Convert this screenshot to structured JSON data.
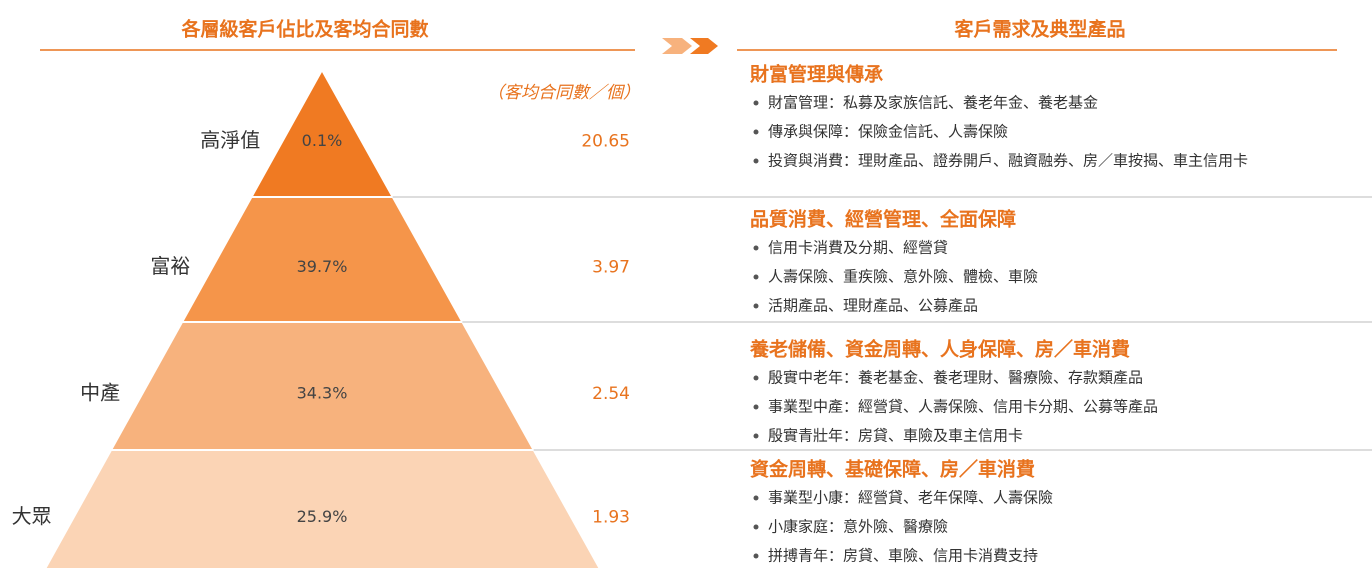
{
  "left": {
    "title": "各層級客戶佔比及客均合同數",
    "unit_note": "（客均合同數／個）",
    "tiers": [
      {
        "name": "高淨值",
        "share": "0.1%",
        "contracts": "20.65"
      },
      {
        "name": "富裕",
        "share": "39.7%",
        "contracts": "3.97"
      },
      {
        "name": "中產",
        "share": "34.3%",
        "contracts": "2.54"
      },
      {
        "name": "大眾",
        "share": "25.9%",
        "contracts": "1.93"
      }
    ]
  },
  "right": {
    "title": "客戶需求及典型產品",
    "sections": [
      {
        "heading": "財富管理與傳承",
        "items": [
          "財富管理：私募及家族信託、養老年金、養老基金",
          "傳承與保障：保險金信託、人壽保險",
          "投資與消費：理財產品、證券開戶、融資融券、房／車按揭、車主信用卡"
        ]
      },
      {
        "heading": "品質消費、經營管理、全面保障",
        "items": [
          "信用卡消費及分期、經營貸",
          "人壽保險、重疾險、意外險、體檢、車險",
          "活期產品、理財產品、公募產品"
        ]
      },
      {
        "heading": "養老儲備、資金周轉、人身保障、房／車消費",
        "items": [
          "殷實中老年：養老基金、養老理財、醫療險、存款類產品",
          "事業型中產：經營貸、人壽保險、信用卡分期、公募等產品",
          "殷實青壯年：房貸、車險及車主信用卡"
        ]
      },
      {
        "heading": "資金周轉、基礎保障、房／車消費",
        "items": [
          "事業型小康：經營貸、老年保障、人壽保險",
          "小康家庭：意外險、醫療險",
          "拼搏青年：房貸、車險、信用卡消費支持"
        ]
      }
    ]
  }
}
